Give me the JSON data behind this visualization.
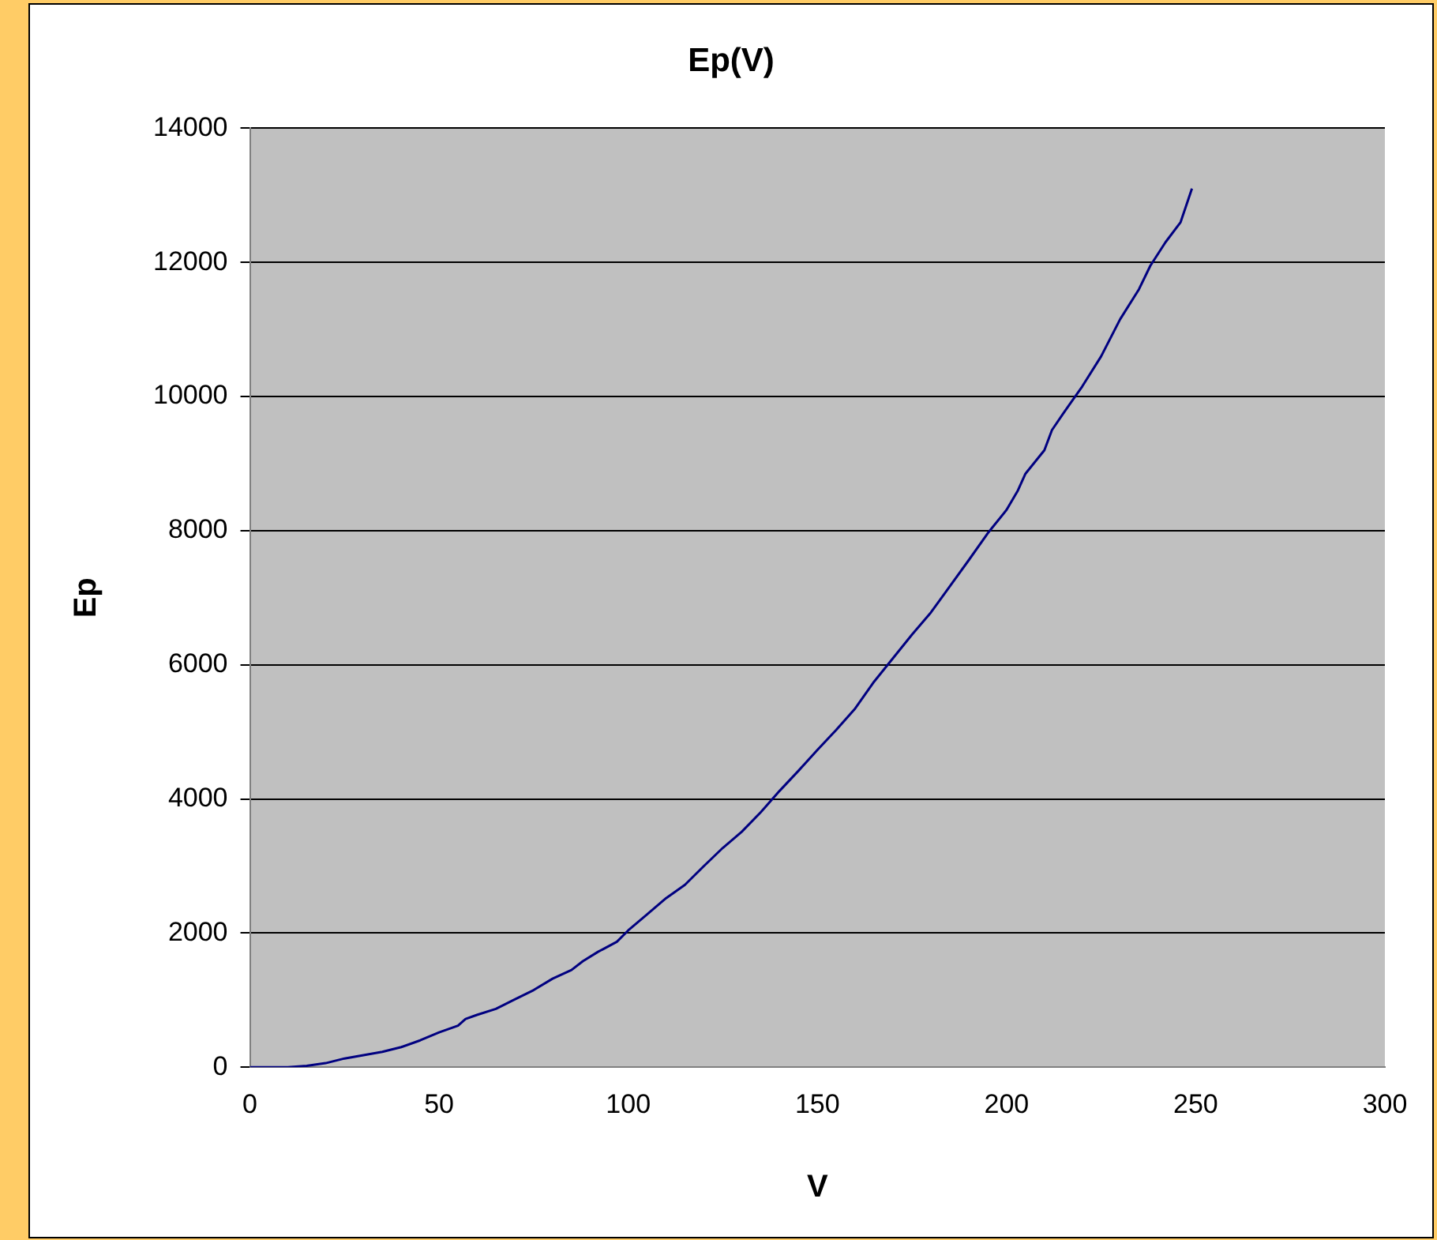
{
  "chart_data": {
    "type": "line",
    "title": "Ep(V)",
    "xlabel": "V",
    "ylabel": "Ep",
    "x": [
      0,
      10,
      15,
      20,
      25,
      30,
      35,
      40,
      45,
      50,
      55,
      57,
      60,
      65,
      70,
      75,
      80,
      85,
      88,
      92,
      97,
      100,
      105,
      110,
      115,
      120,
      125,
      130,
      135,
      140,
      145,
      150,
      155,
      160,
      165,
      170,
      175,
      180,
      185,
      190,
      195,
      200,
      203,
      205,
      210,
      212,
      215,
      220,
      225,
      230,
      235,
      238,
      242,
      246,
      249
    ],
    "series": [
      {
        "color": "#000080",
        "values": [
          0,
          0,
          20,
          60,
          130,
          180,
          230,
          300,
          400,
          520,
          620,
          720,
          780,
          870,
          1010,
          1150,
          1320,
          1450,
          1580,
          1720,
          1870,
          2040,
          2280,
          2520,
          2720,
          3000,
          3270,
          3510,
          3800,
          4120,
          4420,
          4730,
          5030,
          5350,
          5750,
          6100,
          6450,
          6780,
          7170,
          7560,
          7960,
          8310,
          8600,
          8850,
          9200,
          9500,
          9750,
          10150,
          10600,
          11150,
          11600,
          11950,
          12300,
          12600,
          13100
        ]
      }
    ],
    "xlim": [
      0,
      300
    ],
    "xticks": [
      0,
      50,
      100,
      150,
      200,
      250,
      300
    ],
    "ylim": [
      0,
      14000
    ],
    "yticks": [
      0,
      2000,
      4000,
      6000,
      8000,
      10000,
      12000,
      14000
    ],
    "grid": "y",
    "legend": false,
    "marker": "none",
    "line_style": "solid"
  }
}
